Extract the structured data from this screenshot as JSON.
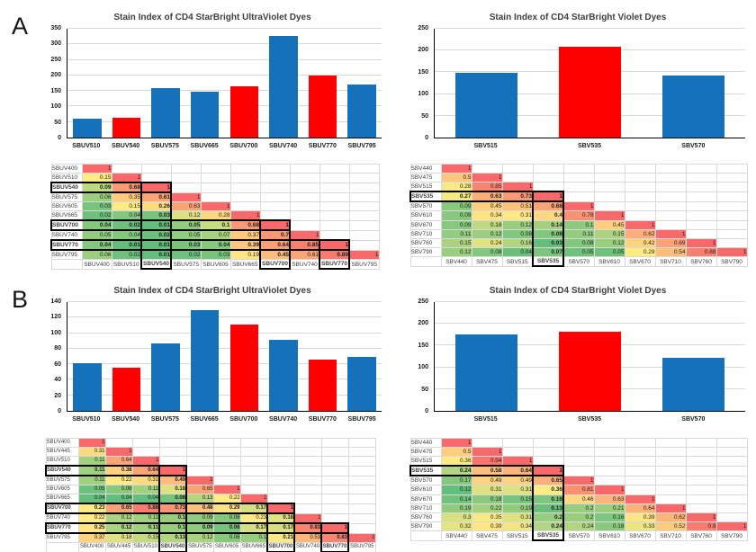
{
  "panel_labels": [
    "A",
    "B"
  ],
  "colors": {
    "bar_blue": "#1572BA",
    "bar_red": "#FE0000",
    "scale_low": "#63BE7B",
    "scale_mid": "#FFEB84",
    "scale_high": "#F8696B",
    "gridline": "#d9d9d9"
  },
  "chart_data": [
    {
      "id": "panel-a-ultraviolet-bar-chart",
      "panel": "A",
      "type": "bar",
      "title": "Stain Index of CD4 StarBright UltraViolet Dyes",
      "categories": [
        "SBUV510",
        "SBUV540",
        "SBUV575",
        "SBUV665",
        "SBUV700",
        "SBUV740",
        "SBUV770",
        "SBUV795"
      ],
      "values": [
        60,
        65,
        160,
        148,
        165,
        326,
        201,
        172
      ],
      "highlighted": [
        "SBUV540",
        "SBUV700",
        "SBUV770"
      ],
      "ylim": [
        0,
        350
      ],
      "ystep": 50,
      "grid": true,
      "legend": "none"
    },
    {
      "id": "panel-a-violet-bar-chart",
      "panel": "A",
      "type": "bar",
      "title": "Stain Index of CD4 StarBright Violet Dyes",
      "categories": [
        "SBV515",
        "SBV535",
        "SBV570"
      ],
      "values": [
        148,
        208,
        143
      ],
      "highlighted": [
        "SBV535"
      ],
      "ylim": [
        0,
        250
      ],
      "ystep": 50,
      "grid": true,
      "legend": "none"
    },
    {
      "id": "panel-a-ultraviolet-similarity-matrix",
      "panel": "A",
      "type": "heatmap",
      "labels": [
        "SBUV400",
        "SBUV510",
        "SBUV540",
        "SBUV575",
        "SBUV605",
        "SBUV665",
        "SBUV700",
        "SBUV740",
        "SBUV770",
        "SBUV795"
      ],
      "rows": [
        [
          "1"
        ],
        [
          "0.15",
          "1"
        ],
        [
          "0.09",
          "0.68",
          "1"
        ],
        [
          "0.06",
          "0.35",
          "0.61",
          "1"
        ],
        [
          "0.03",
          "0.15",
          "0.26",
          "0.63",
          "1"
        ],
        [
          "0.02",
          "0.04",
          "0.03",
          "0.12",
          "0.28",
          "1"
        ],
        [
          "0.04",
          "0.02",
          "0.01",
          "0.05",
          "0.1",
          "0.68",
          "1"
        ],
        [
          "0.05",
          "0.04",
          "0.02",
          "0.05",
          "0.07",
          "0.37",
          "0.7",
          "1"
        ],
        [
          "0.04",
          "0.01",
          "0.01",
          "0.03",
          "0.04",
          "0.39",
          "0.64",
          "0.85",
          "1"
        ],
        [
          "0.06",
          "0.02",
          "0.01",
          "0.02",
          "0.03",
          "0.19",
          "0.45",
          "0.61",
          "0.89",
          "1"
        ]
      ],
      "highlighted": [
        "SBUV540",
        "SBUV700",
        "SBUV770"
      ]
    },
    {
      "id": "panel-a-violet-similarity-matrix",
      "panel": "A",
      "type": "heatmap",
      "labels": [
        "SBV440",
        "SBV475",
        "SBV515",
        "SBV535",
        "SBV570",
        "SBV610",
        "SBV670",
        "SBV710",
        "SBV760",
        "SBV790"
      ],
      "rows": [
        [
          "1"
        ],
        [
          "0.5",
          "1"
        ],
        [
          "0.28",
          "0.85",
          "1"
        ],
        [
          "0.27",
          "0.63",
          "0.73",
          "1"
        ],
        [
          "0.09",
          "0.45",
          "0.51",
          "0.68",
          "1"
        ],
        [
          "0.09",
          "0.34",
          "0.31",
          "0.4",
          "0.78",
          "1"
        ],
        [
          "0.09",
          "0.18",
          "0.12",
          "0.14",
          "0.1",
          "0.45",
          "1"
        ],
        [
          "0.11",
          "0.12",
          "0.08",
          "0.08",
          "0.11",
          "0.15",
          "0.62",
          "1"
        ],
        [
          "0.15",
          "0.24",
          "0.16",
          "0.03",
          "0.08",
          "0.12",
          "0.42",
          "0.69",
          "1"
        ],
        [
          "0.12",
          "0.08",
          "0.04",
          "0.07",
          "0.05",
          "0.05",
          "0.29",
          "0.54",
          "0.88",
          "1"
        ]
      ],
      "highlighted": [
        "SBV535"
      ]
    },
    {
      "id": "panel-b-ultraviolet-bar-chart",
      "panel": "B",
      "type": "bar",
      "title": "Stain Index of CD4 StarBright UltraViolet Dyes",
      "categories": [
        "SBUV510",
        "SBUV540",
        "SBUV575",
        "SBUV665",
        "SBUV700",
        "SBUV740",
        "SBUV770",
        "SBUV795"
      ],
      "values": [
        61,
        55,
        87,
        130,
        111,
        92,
        66,
        70
      ],
      "highlighted": [
        "SBUV540",
        "SBUV700",
        "SBUV770"
      ],
      "ylim": [
        0,
        140
      ],
      "ystep": 20,
      "grid": true,
      "legend": "none"
    },
    {
      "id": "panel-b-violet-bar-chart",
      "panel": "B",
      "type": "bar",
      "title": "Stain Index of CD4 StarBright Violet Dyes",
      "categories": [
        "SBV515",
        "SBV535",
        "SBV570"
      ],
      "values": [
        176,
        181,
        121
      ],
      "highlighted": [
        "SBV535"
      ],
      "ylim": [
        0,
        250
      ],
      "ystep": 50,
      "grid": true,
      "legend": "none"
    },
    {
      "id": "panel-b-ultraviolet-similarity-matrix",
      "panel": "B",
      "type": "heatmap",
      "labels": [
        "SBUV400",
        "SBUV445",
        "SBUV510",
        "SBUV540",
        "SBUV575",
        "SBUV605",
        "SBUV665",
        "SBUV700",
        "SBUV740",
        "SBUV770",
        "SBUV795"
      ],
      "rows": [
        [
          "1"
        ],
        [
          "0.31",
          "1"
        ],
        [
          "0.11",
          "0.64",
          "1"
        ],
        [
          "0.11",
          "0.38",
          "0.64",
          "1"
        ],
        [
          "0.11",
          "0.22",
          "0.31",
          "0.49",
          "1"
        ],
        [
          "0.05",
          "0.08",
          "0.11",
          "0.18",
          "0.65",
          "1"
        ],
        [
          "0.04",
          "0.04",
          "0.04",
          "0.06",
          "0.13",
          "0.22",
          "1"
        ],
        [
          "0.23",
          "0.65",
          "0.88",
          "0.73",
          "0.48",
          "0.29",
          "0.17",
          "1"
        ],
        [
          "0.22",
          "0.12",
          "0.11",
          "0.1",
          "0.09",
          "0.08",
          "0.23",
          "0.18",
          "1"
        ],
        [
          "0.25",
          "0.12",
          "0.11",
          "0.1",
          "0.09",
          "0.06",
          "0.17",
          "0.17",
          "0.83",
          "1"
        ],
        [
          "0.37",
          "0.18",
          "0.15",
          "0.13",
          "0.12",
          "0.08",
          "0.1",
          "0.21",
          "0.53",
          "0.83",
          "1"
        ]
      ],
      "highlighted": [
        "SBUV540",
        "SBUV700",
        "SBUV770"
      ]
    },
    {
      "id": "panel-b-violet-similarity-matrix",
      "panel": "B",
      "type": "heatmap",
      "labels": [
        "SBV440",
        "SBV475",
        "SBV515",
        "SBV535",
        "SBV570",
        "SBV610",
        "SBV670",
        "SBV710",
        "SBV760",
        "SBV790"
      ],
      "rows": [
        [
          "1"
        ],
        [
          "0.5",
          "1"
        ],
        [
          "0.36",
          "0.94",
          "1"
        ],
        [
          "0.24",
          "0.58",
          "0.64",
          "1"
        ],
        [
          "0.17",
          "0.49",
          "0.49",
          "0.65",
          "1"
        ],
        [
          "0.12",
          "0.31",
          "0.31",
          "0.36",
          "0.81",
          "1"
        ],
        [
          "0.14",
          "0.18",
          "0.15",
          "0.16",
          "0.46",
          "0.63",
          "1"
        ],
        [
          "0.19",
          "0.22",
          "0.19",
          "0.13",
          "0.2",
          "0.21",
          "0.64",
          "1"
        ],
        [
          "0.3",
          "0.35",
          "0.31",
          "0.2",
          "0.2",
          "0.16",
          "0.39",
          "0.62",
          "1"
        ],
        [
          "0.32",
          "0.39",
          "0.34",
          "0.24",
          "0.24",
          "0.18",
          "0.33",
          "0.52",
          "0.9",
          "1"
        ]
      ],
      "highlighted": [
        "SBV535"
      ]
    }
  ]
}
